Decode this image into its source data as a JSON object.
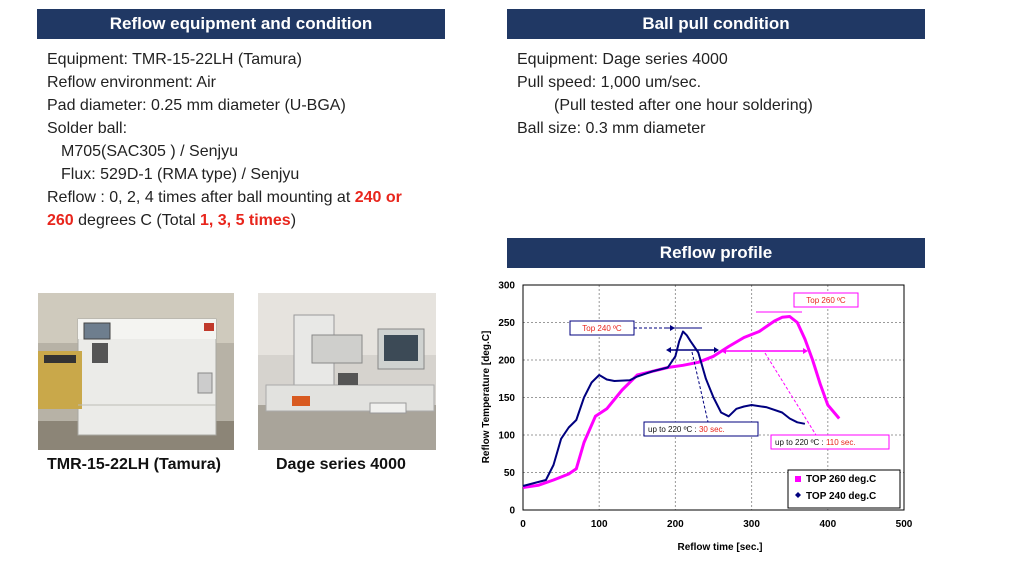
{
  "left_section": {
    "title": "Reflow equipment and condition",
    "equipment": "Equipment: TMR-15-22LH (Tamura)",
    "environment": "Reflow environment: Air",
    "pad": "Pad diameter: 0.25 mm diameter  (U-BGA)",
    "solder_ball": "Solder ball:",
    "solder_ball_type": "M705(SAC305 ) / Senjyu",
    "flux": "Flux: 529D-1 (RMA type) /  Senjyu",
    "reflow_a": "Reflow : 0, 2, 4 times after ball mounting at ",
    "reflow_red1": "240 or",
    "reflow_red2": "260",
    "reflow_b": " degrees C (Total ",
    "reflow_red3": "1, 3, 5 times",
    "reflow_c": ")"
  },
  "right_section": {
    "title": "Ball pull condition",
    "equipment": "Equipment: Dage series 4000",
    "speed": "Pull speed: 1,000 um/sec.",
    "note": "(Pull tested after one hour soldering)",
    "ball_size": "Ball size: 0.3 mm diameter"
  },
  "profile_section": {
    "title": "Reflow profile"
  },
  "photos": {
    "caption1": "TMR-15-22LH (Tamura)",
    "caption2": "Dage series 4000"
  },
  "colors": {
    "header_bg": "#203864",
    "red": "#e8251c",
    "magenta": "#ff00ff",
    "navy": "#00007f"
  },
  "chart_data": {
    "type": "line",
    "title": "",
    "xlabel": "Reflow time [sec.]",
    "ylabel": "Reflow Temperature [deg.C]",
    "xlim": [
      0,
      500
    ],
    "ylim": [
      0,
      300
    ],
    "xticks": [
      "0",
      "100",
      "200",
      "300",
      "400",
      "500"
    ],
    "yticks": [
      "0",
      "50",
      "100",
      "150",
      "200",
      "250",
      "300"
    ],
    "grid": true,
    "legend_position": "bottom-right",
    "annotations": [
      "Top 240 ºC",
      "Top 260 ºC",
      "up to 220 ºC : ",
      "30 sec.",
      "up to 220 ºC : ",
      "110 sec."
    ],
    "series": [
      {
        "name": "TOP 260 deg.C",
        "color": "#ff00ff",
        "x": [
          0,
          20,
          40,
          60,
          70,
          80,
          95,
          110,
          130,
          150,
          170,
          190,
          210,
          230,
          250,
          270,
          290,
          310,
          330,
          340,
          350,
          360,
          370,
          380,
          390,
          400,
          410,
          415
        ],
        "y": [
          30,
          33,
          40,
          48,
          55,
          90,
          125,
          135,
          160,
          180,
          185,
          190,
          193,
          197,
          205,
          218,
          230,
          238,
          252,
          257,
          258,
          250,
          228,
          200,
          168,
          140,
          128,
          122
        ]
      },
      {
        "name": "TOP 240 deg.C",
        "color": "#00007f",
        "x": [
          0,
          15,
          30,
          40,
          50,
          60,
          70,
          80,
          90,
          100,
          110,
          120,
          140,
          150,
          170,
          190,
          200,
          205,
          210,
          215,
          220,
          230,
          240,
          250,
          260,
          270,
          280,
          290,
          300,
          320,
          340,
          350,
          360,
          370
        ],
        "y": [
          32,
          36,
          40,
          60,
          95,
          110,
          120,
          150,
          170,
          180,
          174,
          172,
          173,
          178,
          185,
          190,
          205,
          225,
          238,
          233,
          225,
          210,
          175,
          150,
          130,
          125,
          135,
          138,
          140,
          137,
          130,
          122,
          117,
          115
        ]
      }
    ]
  }
}
